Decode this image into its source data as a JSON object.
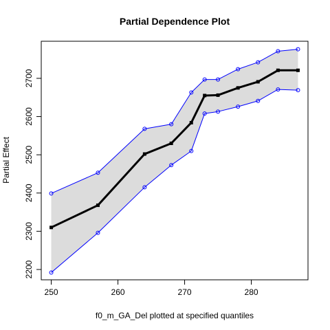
{
  "chart_data": {
    "type": "line",
    "title": "Partial Dependence Plot",
    "xlabel": "f0_m_GA_Del plotted at specified quantiles",
    "ylabel": "Partial Effect",
    "xlim": [
      248.5,
      288.5
    ],
    "ylim": [
      2173,
      2797
    ],
    "x_ticks": [
      250,
      260,
      270,
      280
    ],
    "y_ticks": [
      2200,
      2300,
      2400,
      2500,
      2600,
      2700
    ],
    "x": [
      250,
      257,
      264,
      268,
      271,
      273,
      275,
      278,
      281,
      284,
      287
    ],
    "series": [
      {
        "role": "estimate",
        "values": [
          2310,
          2368,
          2502,
          2530,
          2584,
          2655,
          2656,
          2675,
          2691,
          2721,
          2721
        ]
      },
      {
        "role": "upper",
        "values": [
          2399,
          2453,
          2568,
          2580,
          2663,
          2697,
          2697,
          2724,
          2742,
          2771,
          2776
        ]
      },
      {
        "role": "lower",
        "values": [
          2192,
          2296,
          2415,
          2473,
          2510,
          2608,
          2613,
          2626,
          2641,
          2671,
          2669
        ]
      }
    ],
    "colors": {
      "band": "#dcdcdc",
      "estimate": "#000000",
      "bounds": "#0000ff"
    },
    "grid": false,
    "legend": "none"
  }
}
